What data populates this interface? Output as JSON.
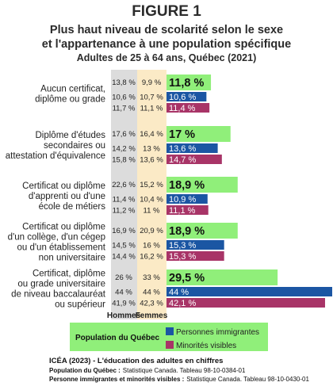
{
  "header": {
    "figure_label": "FIGURE 1",
    "title_line1": "Plus haut niveau de scolarité selon le sexe",
    "title_line2": "et l'appartenance à une population spécifique",
    "subtitle": "Adultes de 25 à 64 ans, Québec (2021)"
  },
  "chart_data": {
    "type": "bar",
    "orientation": "horizontal",
    "unit": "%",
    "title": "Plus haut niveau de scolarité selon le sexe et l'appartenance à une population spécifique",
    "subtitle": "Adultes de 25 à 64 ans, Québec (2021)",
    "categories": [
      [
        "Aucun certificat,",
        "diplôme ou grade"
      ],
      [
        "Diplôme d'études",
        "secondaires ou",
        "attestation d'équivalence"
      ],
      [
        "Certificat ou diplôme",
        "d'apprenti ou d'une",
        "école de métiers"
      ],
      [
        "Certificat ou diplôme",
        "d'un collège, d'un cégep",
        "ou d'un établissement",
        "non universitaire"
      ],
      [
        "Certificat, diplôme",
        "ou grade universitaire",
        "de niveau baccalauréat",
        "ou supérieur"
      ]
    ],
    "series": [
      {
        "name": "Population du Québec",
        "color": "#90ef7a",
        "values": [
          11.8,
          17,
          18.9,
          18.9,
          29.5
        ],
        "labels": [
          "11,8 %",
          "17 %",
          "18,9 %",
          "18,9 %",
          "29,5 %"
        ]
      },
      {
        "name": "Personnes immigrantes",
        "color": "#1b56a3",
        "values": [
          10.6,
          13.6,
          10.9,
          15.3,
          44
        ],
        "labels": [
          "10,6 %",
          "13,6 %",
          "10,9 %",
          "15,3 %",
          "44 %"
        ]
      },
      {
        "name": "Minorités visibles",
        "color": "#a83467",
        "values": [
          11.4,
          14.7,
          11.1,
          15.3,
          42.1
        ],
        "labels": [
          "11,4 %",
          "14,7 %",
          "11,1 %",
          "15,3 %",
          "42,1 %"
        ]
      }
    ],
    "sex_breakdown": {
      "columns": [
        "Hommes",
        "Femmes"
      ],
      "rows": [
        [
          [
            "13,8 %",
            "9,9 %"
          ],
          [
            "10,6 %",
            "10,7 %"
          ],
          [
            "11,7 %",
            "11,1 %"
          ]
        ],
        [
          [
            "17,6 %",
            "16,4 %"
          ],
          [
            "14,2 %",
            "13 %"
          ],
          [
            "15,8 %",
            "13,6 %"
          ]
        ],
        [
          [
            "22,6 %",
            "15,2 %"
          ],
          [
            "11,4 %",
            "10,4 %"
          ],
          [
            "11,2 %",
            "11 %"
          ]
        ],
        [
          [
            "16,9 %",
            "20,9 %"
          ],
          [
            "14,5 %",
            "16 %"
          ],
          [
            "14,4 %",
            "16,2 %"
          ]
        ],
        [
          [
            "26 %",
            "33 %"
          ],
          [
            "44 %",
            "44 %"
          ],
          [
            "41,9 %",
            "42,3 %"
          ]
        ]
      ]
    },
    "colors": {
      "hommes_column": "#dcdcdc",
      "femmes_column": "#fbeac6"
    },
    "legend": {
      "title": "Population du Québec",
      "items": [
        "Personnes immigrantes",
        "Minorités visibles"
      ],
      "placement": "bottom"
    }
  },
  "source": {
    "line1": "ICÉA (2023) - L'éducation des adultes en chiffres",
    "line2_label": "Population du Québec :",
    "line2_text": "Statistique Canada. Tableau 98-10-0384-01",
    "line3_label": "Personne immigrantes et minorités visibles :",
    "line3_text": "Statistique Canada. Tableau 98-10-0430-01"
  }
}
